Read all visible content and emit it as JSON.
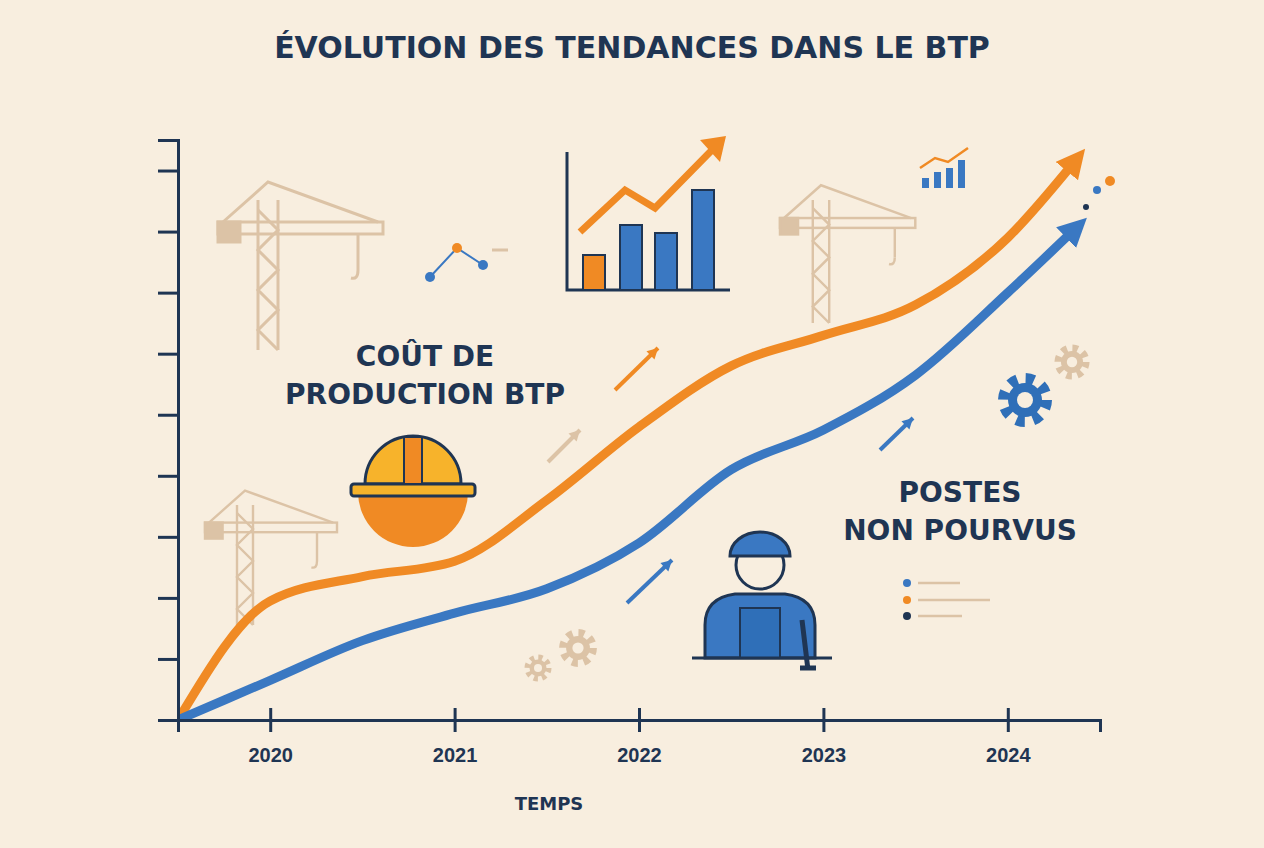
{
  "chart_data": {
    "type": "line",
    "title": "ÉVOLUTION DES TENDANCES DANS LE BTP",
    "xlabel": "TEMPS",
    "x": [
      2019.5,
      2020,
      2020.5,
      2021,
      2021.5,
      2022,
      2022.5,
      2023,
      2023.5,
      2024,
      2024.35
    ],
    "series": [
      {
        "name": "COÛT DE PRODUCTION BTP",
        "color": "#f08a24",
        "marker": "arrow",
        "values": [
          0,
          1.95,
          2.35,
          2.6,
          3.6,
          4.8,
          5.8,
          6.3,
          6.8,
          7.9,
          9.1
        ]
      },
      {
        "name": "POSTES NON POURVUS",
        "color": "#3a78c2",
        "marker": "arrow",
        "values": [
          0,
          0.65,
          1.3,
          1.75,
          2.15,
          2.9,
          4.1,
          4.75,
          5.65,
          7.0,
          8.0
        ]
      }
    ],
    "xlim": [
      2019.5,
      2024.5
    ],
    "xticks": [
      2020,
      2021,
      2022,
      2023,
      2024
    ],
    "ylim": [
      0,
      9.5
    ],
    "yticks": [
      1,
      2,
      3,
      4,
      5,
      6,
      7,
      8,
      9
    ],
    "tick_labels": "x",
    "grid": false
  }
}
